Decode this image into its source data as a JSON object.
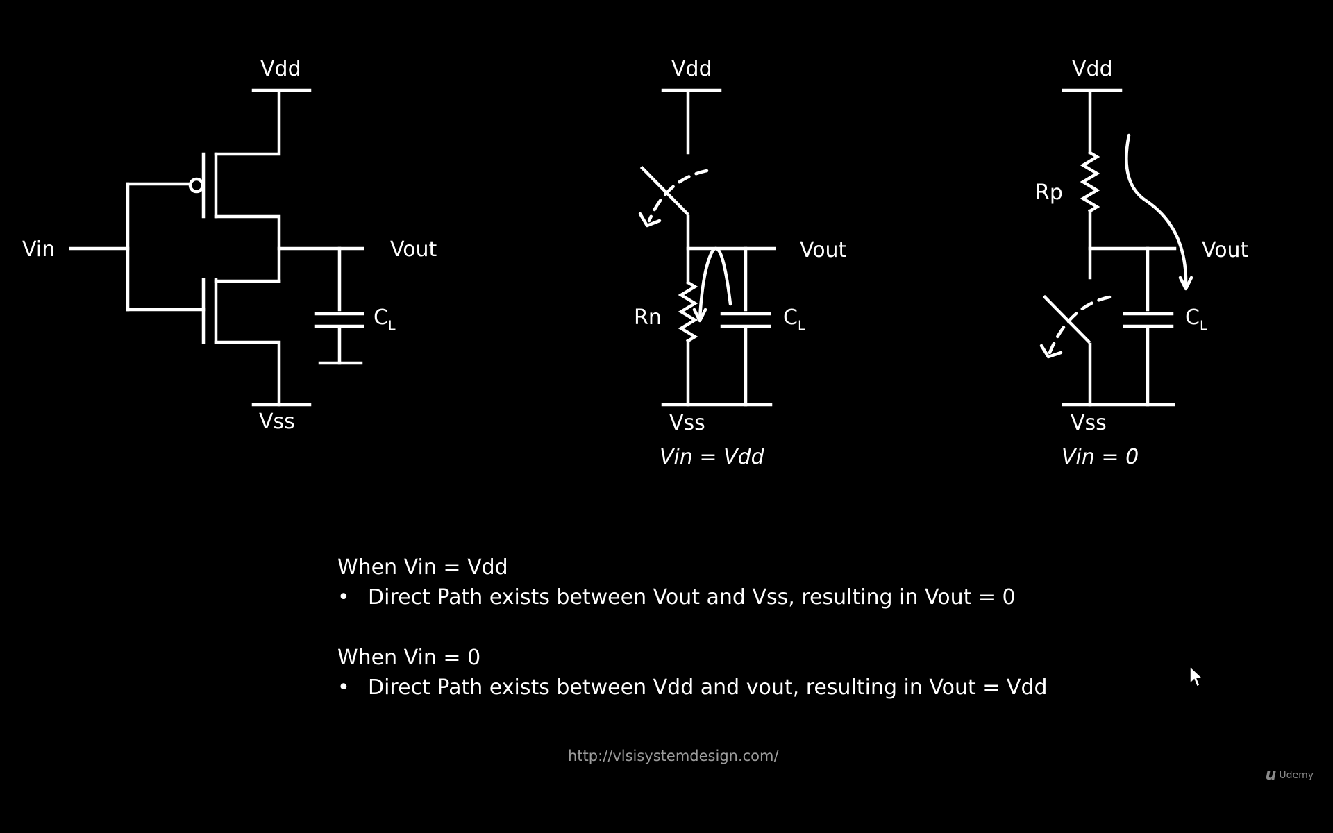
{
  "circuits": {
    "cmos": {
      "vdd": "Vdd",
      "vss": "Vss",
      "vin": "Vin",
      "vout": "Vout",
      "cap_main": "C",
      "cap_sub": "L"
    },
    "nmos_on": {
      "vdd": "Vdd",
      "vss": "Vss",
      "vout": "Vout",
      "resistor": "Rn",
      "cap_main": "C",
      "cap_sub": "L",
      "condition": "Vin = Vdd"
    },
    "pmos_on": {
      "vdd": "Vdd",
      "vss": "Vss",
      "vout": "Vout",
      "resistor": "Rp",
      "cap_main": "C",
      "cap_sub": "L",
      "condition": "Vin = 0"
    }
  },
  "notes": [
    {
      "heading": "When Vin = Vdd",
      "bullet": "Direct Path exists between Vout and Vss, resulting in Vout = 0"
    },
    {
      "heading": "When Vin = 0",
      "bullet": "Direct Path exists between Vdd and vout, resulting in Vout = Vdd"
    }
  ],
  "footer": {
    "url": "http://vlsisystemdesign.com/",
    "brand": "Udemy"
  }
}
